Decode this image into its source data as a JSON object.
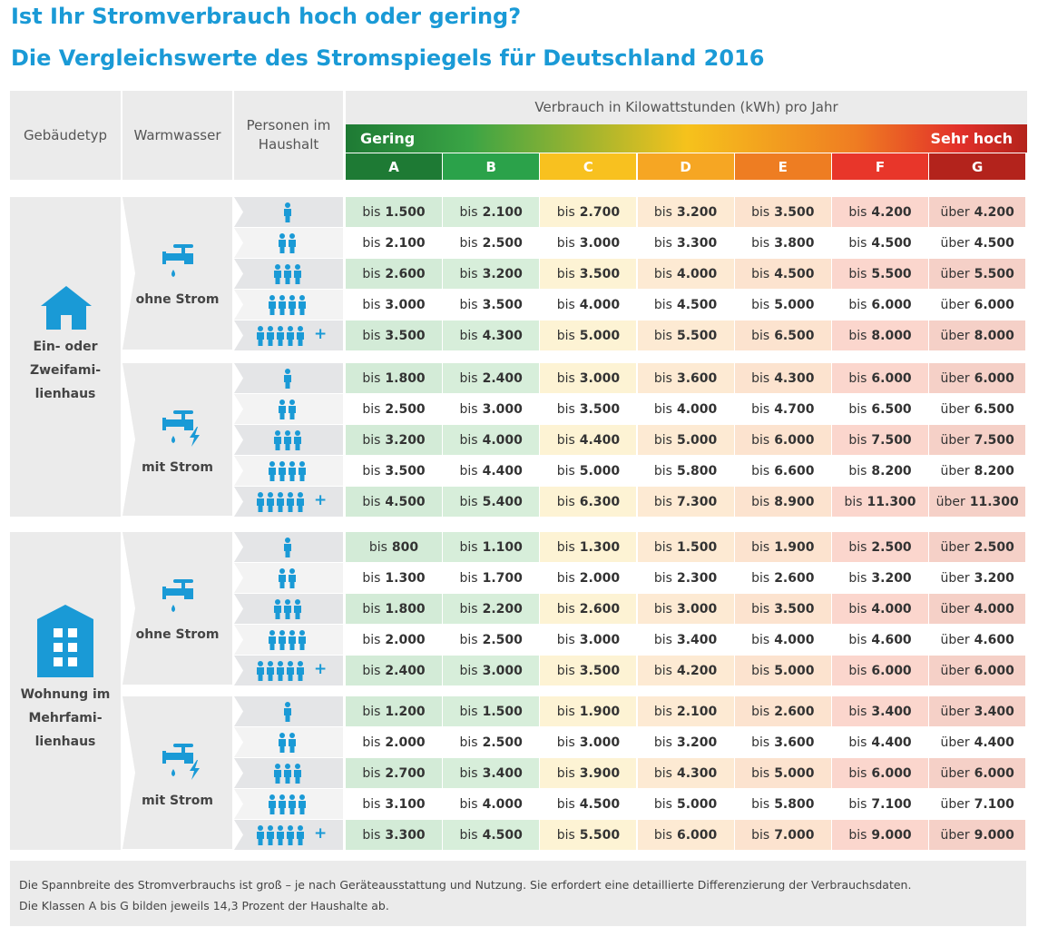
{
  "header": {
    "title1": "Ist Ihr Stromverbrauch hoch oder gering?",
    "title2": "Die Vergleichswerte des Stromspiegels für Deutschland 2016"
  },
  "table": {
    "col_headers": [
      [
        "Gebäudetyp"
      ],
      [
        "Warmwasser"
      ],
      [
        "Personen im",
        "Haushalt"
      ]
    ],
    "consumption_header": "Verbrauch in Kilowattstunden (kWh) pro Jahr",
    "scale_low": "Gering",
    "scale_high": "Sehr hoch",
    "classes": [
      "A",
      "B",
      "C",
      "D",
      "E",
      "F",
      "G"
    ],
    "persons_plus": "+",
    "groups": [
      {
        "building": [
          "Ein- oder",
          "Zweifami-",
          "lienhaus"
        ],
        "subgroups": [
          {
            "water": "ohne Strom",
            "rows": [
              [
                [
                  "bis",
                  "1.500"
                ],
                [
                  "bis",
                  "2.100"
                ],
                [
                  "bis",
                  "2.700"
                ],
                [
                  "bis",
                  "3.200"
                ],
                [
                  "bis",
                  "3.500"
                ],
                [
                  "bis",
                  "4.200"
                ],
                [
                  "über",
                  "4.200"
                ]
              ],
              [
                [
                  "bis",
                  "2.100"
                ],
                [
                  "bis",
                  "2.500"
                ],
                [
                  "bis",
                  "3.000"
                ],
                [
                  "bis",
                  "3.300"
                ],
                [
                  "bis",
                  "3.800"
                ],
                [
                  "bis",
                  "4.500"
                ],
                [
                  "über",
                  "4.500"
                ]
              ],
              [
                [
                  "bis",
                  "2.600"
                ],
                [
                  "bis",
                  "3.200"
                ],
                [
                  "bis",
                  "3.500"
                ],
                [
                  "bis",
                  "4.000"
                ],
                [
                  "bis",
                  "4.500"
                ],
                [
                  "bis",
                  "5.500"
                ],
                [
                  "über",
                  "5.500"
                ]
              ],
              [
                [
                  "bis",
                  "3.000"
                ],
                [
                  "bis",
                  "3.500"
                ],
                [
                  "bis",
                  "4.000"
                ],
                [
                  "bis",
                  "4.500"
                ],
                [
                  "bis",
                  "5.000"
                ],
                [
                  "bis",
                  "6.000"
                ],
                [
                  "über",
                  "6.000"
                ]
              ],
              [
                [
                  "bis",
                  "3.500"
                ],
                [
                  "bis",
                  "4.300"
                ],
                [
                  "bis",
                  "5.000"
                ],
                [
                  "bis",
                  "5.500"
                ],
                [
                  "bis",
                  "6.500"
                ],
                [
                  "bis",
                  "8.000"
                ],
                [
                  "über",
                  "8.000"
                ]
              ]
            ]
          },
          {
            "water": "mit Strom",
            "rows": [
              [
                [
                  "bis",
                  "1.800"
                ],
                [
                  "bis",
                  "2.400"
                ],
                [
                  "bis",
                  "3.000"
                ],
                [
                  "bis",
                  "3.600"
                ],
                [
                  "bis",
                  "4.300"
                ],
                [
                  "bis",
                  "6.000"
                ],
                [
                  "über",
                  "6.000"
                ]
              ],
              [
                [
                  "bis",
                  "2.500"
                ],
                [
                  "bis",
                  "3.000"
                ],
                [
                  "bis",
                  "3.500"
                ],
                [
                  "bis",
                  "4.000"
                ],
                [
                  "bis",
                  "4.700"
                ],
                [
                  "bis",
                  "6.500"
                ],
                [
                  "über",
                  "6.500"
                ]
              ],
              [
                [
                  "bis",
                  "3.200"
                ],
                [
                  "bis",
                  "4.000"
                ],
                [
                  "bis",
                  "4.400"
                ],
                [
                  "bis",
                  "5.000"
                ],
                [
                  "bis",
                  "6.000"
                ],
                [
                  "bis",
                  "7.500"
                ],
                [
                  "über",
                  "7.500"
                ]
              ],
              [
                [
                  "bis",
                  "3.500"
                ],
                [
                  "bis",
                  "4.400"
                ],
                [
                  "bis",
                  "5.000"
                ],
                [
                  "bis",
                  "5.800"
                ],
                [
                  "bis",
                  "6.600"
                ],
                [
                  "bis",
                  "8.200"
                ],
                [
                  "über",
                  "8.200"
                ]
              ],
              [
                [
                  "bis",
                  "4.500"
                ],
                [
                  "bis",
                  "5.400"
                ],
                [
                  "bis",
                  "6.300"
                ],
                [
                  "bis",
                  "7.300"
                ],
                [
                  "bis",
                  "8.900"
                ],
                [
                  "bis",
                  "11.300"
                ],
                [
                  "über",
                  "11.300"
                ]
              ]
            ]
          }
        ]
      },
      {
        "building": [
          "Wohnung im",
          "Mehrfami-",
          "lienhaus"
        ],
        "subgroups": [
          {
            "water": "ohne Strom",
            "rows": [
              [
                [
                  "bis",
                  "800"
                ],
                [
                  "bis",
                  "1.100"
                ],
                [
                  "bis",
                  "1.300"
                ],
                [
                  "bis",
                  "1.500"
                ],
                [
                  "bis",
                  "1.900"
                ],
                [
                  "bis",
                  "2.500"
                ],
                [
                  "über",
                  "2.500"
                ]
              ],
              [
                [
                  "bis",
                  "1.300"
                ],
                [
                  "bis",
                  "1.700"
                ],
                [
                  "bis",
                  "2.000"
                ],
                [
                  "bis",
                  "2.300"
                ],
                [
                  "bis",
                  "2.600"
                ],
                [
                  "bis",
                  "3.200"
                ],
                [
                  "über",
                  "3.200"
                ]
              ],
              [
                [
                  "bis",
                  "1.800"
                ],
                [
                  "bis",
                  "2.200"
                ],
                [
                  "bis",
                  "2.600"
                ],
                [
                  "bis",
                  "3.000"
                ],
                [
                  "bis",
                  "3.500"
                ],
                [
                  "bis",
                  "4.000"
                ],
                [
                  "über",
                  "4.000"
                ]
              ],
              [
                [
                  "bis",
                  "2.000"
                ],
                [
                  "bis",
                  "2.500"
                ],
                [
                  "bis",
                  "3.000"
                ],
                [
                  "bis",
                  "3.400"
                ],
                [
                  "bis",
                  "4.000"
                ],
                [
                  "bis",
                  "4.600"
                ],
                [
                  "über",
                  "4.600"
                ]
              ],
              [
                [
                  "bis",
                  "2.400"
                ],
                [
                  "bis",
                  "3.000"
                ],
                [
                  "bis",
                  "3.500"
                ],
                [
                  "bis",
                  "4.200"
                ],
                [
                  "bis",
                  "5.000"
                ],
                [
                  "bis",
                  "6.000"
                ],
                [
                  "über",
                  "6.000"
                ]
              ]
            ]
          },
          {
            "water": "mit Strom",
            "rows": [
              [
                [
                  "bis",
                  "1.200"
                ],
                [
                  "bis",
                  "1.500"
                ],
                [
                  "bis",
                  "1.900"
                ],
                [
                  "bis",
                  "2.100"
                ],
                [
                  "bis",
                  "2.600"
                ],
                [
                  "bis",
                  "3.400"
                ],
                [
                  "über",
                  "3.400"
                ]
              ],
              [
                [
                  "bis",
                  "2.000"
                ],
                [
                  "bis",
                  "2.500"
                ],
                [
                  "bis",
                  "3.000"
                ],
                [
                  "bis",
                  "3.200"
                ],
                [
                  "bis",
                  "3.600"
                ],
                [
                  "bis",
                  "4.400"
                ],
                [
                  "über",
                  "4.400"
                ]
              ],
              [
                [
                  "bis",
                  "2.700"
                ],
                [
                  "bis",
                  "3.400"
                ],
                [
                  "bis",
                  "3.900"
                ],
                [
                  "bis",
                  "4.300"
                ],
                [
                  "bis",
                  "5.000"
                ],
                [
                  "bis",
                  "6.000"
                ],
                [
                  "über",
                  "6.000"
                ]
              ],
              [
                [
                  "bis",
                  "3.100"
                ],
                [
                  "bis",
                  "4.000"
                ],
                [
                  "bis",
                  "4.500"
                ],
                [
                  "bis",
                  "5.000"
                ],
                [
                  "bis",
                  "5.800"
                ],
                [
                  "bis",
                  "7.100"
                ],
                [
                  "über",
                  "7.100"
                ]
              ],
              [
                [
                  "bis",
                  "3.300"
                ],
                [
                  "bis",
                  "4.500"
                ],
                [
                  "bis",
                  "5.500"
                ],
                [
                  "bis",
                  "6.000"
                ],
                [
                  "bis",
                  "7.000"
                ],
                [
                  "bis",
                  "9.000"
                ],
                [
                  "über",
                  "9.000"
                ]
              ]
            ]
          }
        ]
      }
    ]
  },
  "footer": [
    "Die Spannbreite des Stromverbrauchs ist groß – je nach Geräteausstattung und Nutzung. Sie erfordert eine detaillierte Differenzierung der Verbrauchsdaten.",
    "Die Klassen A bis G bilden jeweils 14,3 Prozent der Haushalte ab."
  ]
}
